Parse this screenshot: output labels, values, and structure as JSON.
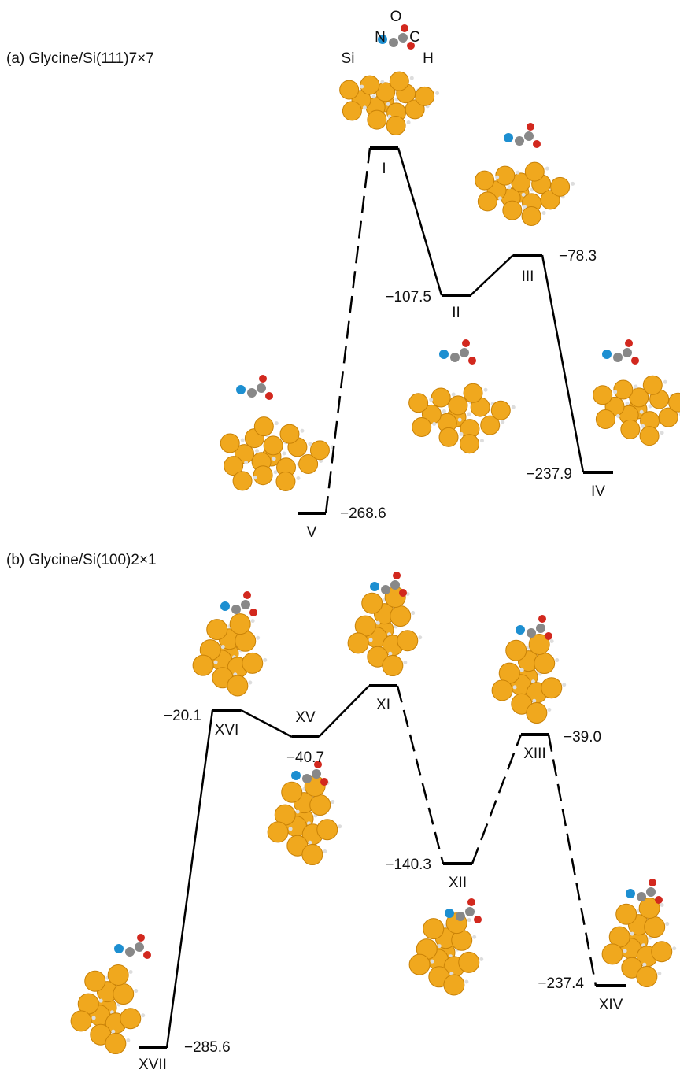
{
  "panel_a": {
    "title": "(a) Glycine/Si(111)7×7",
    "atom_labels": [
      "O",
      "N",
      "C",
      "Si",
      "H"
    ],
    "levels": [
      {
        "label": "I"
      },
      {
        "label": "II",
        "energy": "−107.5"
      },
      {
        "label": "III",
        "energy": "−78.3"
      },
      {
        "label": "IV",
        "energy": "−237.9"
      },
      {
        "label": "V",
        "energy": "−268.6"
      }
    ]
  },
  "panel_b": {
    "title": "(b) Glycine/Si(100)2×1",
    "levels": [
      {
        "label": "XVII",
        "energy": "−285.6"
      },
      {
        "label": "XVI",
        "energy": "−20.1"
      },
      {
        "label": "XV",
        "energy": "−40.7"
      },
      {
        "label": "XI"
      },
      {
        "label": "XII",
        "energy": "−140.3"
      },
      {
        "label": "XIII",
        "energy": "−39.0"
      },
      {
        "label": "XIV",
        "energy": "−237.4"
      }
    ]
  }
}
